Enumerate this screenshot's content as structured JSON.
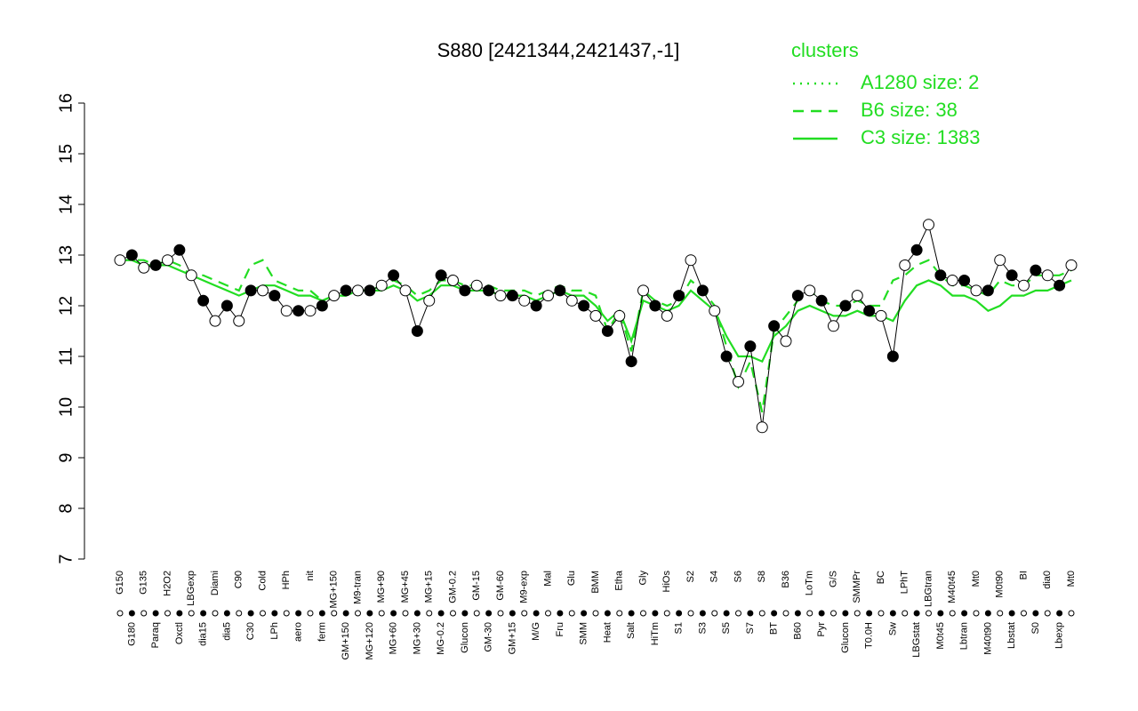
{
  "chart_data": {
    "type": "line",
    "title": "S880 [2421344,2421437,-1]",
    "ylim": [
      7,
      16
    ],
    "yticks": [
      7,
      8,
      9,
      10,
      11,
      12,
      13,
      14,
      15,
      16
    ],
    "legend_title": "clusters",
    "legend_position": "top-right",
    "categories": [
      "G150",
      "G180",
      "G135",
      "Paraq",
      "H2O2",
      "Oxctl",
      "LBGexp",
      "dia15",
      "Diami",
      "dia5",
      "C90",
      "C30",
      "Cold",
      "LPh",
      "HPh",
      "aero",
      "nit",
      "ferm",
      "MG+150",
      "GM+150",
      "M9-tran",
      "MG+120",
      "MG+90",
      "MG+60",
      "MG+45",
      "MG+30",
      "MG+15",
      "MG-0.2",
      "GM-0.2",
      "Glucon",
      "GM-15",
      "GM-30",
      "GM-60",
      "GM+15",
      "M9-exp",
      "M/G",
      "Mal",
      "Fru",
      "Glu",
      "SMM",
      "BMM",
      "Heat",
      "Etha",
      "Salt",
      "Gly",
      "HiTm",
      "HiOs",
      "S1",
      "S2",
      "S3",
      "S4",
      "S5",
      "S6",
      "S7",
      "S8",
      "BT",
      "B36",
      "B60",
      "LoTm",
      "Pyr",
      "G/S",
      "Glucon",
      "SMMPr",
      "T0.0H",
      "BC",
      "Sw",
      "LPhT",
      "LBGstat",
      "LBGtran",
      "M0t45",
      "M40t45",
      "Lbtran",
      "Mt0",
      "M40t90",
      "M0t90",
      "Lbstat",
      "BI",
      "S0",
      "dia0",
      "Lbexp",
      "Mt0"
    ],
    "values": [
      12.9,
      13.0,
      12.75,
      12.8,
      12.9,
      13.1,
      12.6,
      12.1,
      11.7,
      12.0,
      11.7,
      12.3,
      12.3,
      12.2,
      11.9,
      11.9,
      11.9,
      12.0,
      12.2,
      12.3,
      12.3,
      12.3,
      12.4,
      12.6,
      12.3,
      11.5,
      12.1,
      12.6,
      12.5,
      12.3,
      12.4,
      12.3,
      12.2,
      12.2,
      12.1,
      12.0,
      12.2,
      12.3,
      12.1,
      12.0,
      11.8,
      11.5,
      11.8,
      10.9,
      12.3,
      12.0,
      11.8,
      12.2,
      12.9,
      12.3,
      11.9,
      11.0,
      10.5,
      11.2,
      9.6,
      11.6,
      11.3,
      12.2,
      12.3,
      12.1,
      11.6,
      12.0,
      12.2,
      11.9,
      11.8,
      11.0,
      12.8,
      13.1,
      13.6,
      12.6,
      12.5,
      12.5,
      12.3,
      12.3,
      12.9,
      12.6,
      12.4,
      12.7,
      12.6,
      12.4,
      12.8
    ],
    "series": [
      {
        "name": "A1280 size: 2",
        "color": "#22dd22",
        "dash": "dotted"
      },
      {
        "name": "B6 size: 38",
        "color": "#22dd22",
        "dash": "dashed",
        "values": [
          12.9,
          12.9,
          12.9,
          12.8,
          12.9,
          12.8,
          12.6,
          12.6,
          12.5,
          12.4,
          12.3,
          12.8,
          12.9,
          12.5,
          12.4,
          12.3,
          12.3,
          12.1,
          12.2,
          12.2,
          12.3,
          12.3,
          12.4,
          12.5,
          12.4,
          12.2,
          12.3,
          12.5,
          12.5,
          12.4,
          12.4,
          12.4,
          12.3,
          12.3,
          12.3,
          12.2,
          12.3,
          12.4,
          12.3,
          12.3,
          12.2,
          11.5,
          11.9,
          11.1,
          12.3,
          12.1,
          12.0,
          12.1,
          12.5,
          12.3,
          12.0,
          11.2,
          10.4,
          10.9,
          9.9,
          11.5,
          11.8,
          12.1,
          12.3,
          12.1,
          12.0,
          12.0,
          12.1,
          12.0,
          12.0,
          12.5,
          12.6,
          12.8,
          12.9,
          12.6,
          12.4,
          12.4,
          12.3,
          12.2,
          12.5,
          12.4,
          12.4,
          12.6,
          12.6,
          12.6,
          12.7
        ]
      },
      {
        "name": "C3 size: 1383",
        "color": "#22dd22",
        "dash": "solid",
        "values": [
          12.9,
          12.9,
          12.8,
          12.8,
          12.8,
          12.7,
          12.6,
          12.5,
          12.4,
          12.3,
          12.2,
          12.3,
          12.4,
          12.4,
          12.3,
          12.2,
          12.2,
          12.1,
          12.2,
          12.2,
          12.3,
          12.3,
          12.3,
          12.4,
          12.3,
          12.1,
          12.2,
          12.4,
          12.4,
          12.3,
          12.3,
          12.3,
          12.2,
          12.2,
          12.2,
          12.1,
          12.2,
          12.3,
          12.2,
          12.2,
          12.0,
          11.7,
          11.9,
          11.3,
          12.1,
          12.0,
          11.9,
          12.0,
          12.3,
          12.1,
          11.9,
          11.4,
          11.0,
          11.0,
          10.9,
          11.4,
          11.6,
          11.9,
          12.0,
          11.9,
          11.8,
          11.8,
          11.9,
          11.8,
          11.8,
          11.7,
          12.1,
          12.4,
          12.5,
          12.4,
          12.2,
          12.2,
          12.1,
          11.9,
          12.0,
          12.2,
          12.2,
          12.3,
          12.3,
          12.4,
          12.5
        ]
      }
    ]
  }
}
